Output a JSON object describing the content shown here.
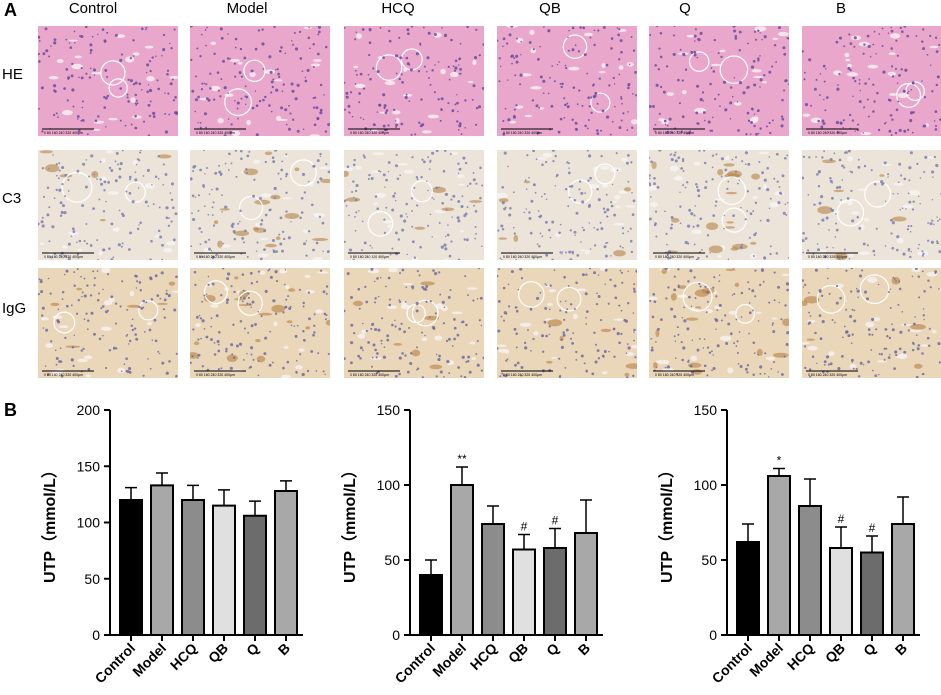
{
  "panel_a_letter": "A",
  "panel_b_letter": "B",
  "columns": [
    "Control",
    "Model",
    "HCQ",
    "QB",
    "Q",
    "B"
  ],
  "rows": [
    {
      "label": "HE",
      "stain": "he"
    },
    {
      "label": "C3",
      "stain": "c3"
    },
    {
      "label": "IgG",
      "stain": "igg"
    }
  ],
  "scalebar_text": "0  80  160  240  320  400μm",
  "colors": {
    "he_bg": "#e9a7cb",
    "he_cell": "#6a4a9e",
    "c3_bg": "#ece4d8",
    "c3_cell": "#7b7fb0",
    "c3_brown": "#b07a3a",
    "igg_bg": "#ead6b8",
    "igg_cell": "#6f6aa0"
  },
  "bar_fills": [
    "#000000",
    "#a8a8a8",
    "#8c8c8c",
    "#e0e0e0",
    "#6c6c6c",
    "#a8a8a8"
  ],
  "chart_data": [
    {
      "type": "bar",
      "categories": [
        "Control",
        "Model",
        "HCQ",
        "QB",
        "Q",
        "B"
      ],
      "values": [
        120,
        133,
        120,
        115,
        106,
        128
      ],
      "errors": [
        11,
        11,
        13,
        14,
        13,
        9
      ],
      "annotations": [
        "",
        "",
        "",
        "",
        "",
        ""
      ],
      "ylabel": "UTP（mmol/L）",
      "ylim": [
        0,
        200
      ],
      "yticks": [
        0,
        50,
        100,
        150,
        200
      ]
    },
    {
      "type": "bar",
      "categories": [
        "Control",
        "Model",
        "HCQ",
        "QB",
        "Q",
        "B"
      ],
      "values": [
        40,
        100,
        74,
        57,
        58,
        68
      ],
      "errors": [
        10,
        12,
        12,
        10,
        13,
        22
      ],
      "annotations": [
        "",
        "**",
        "",
        "#",
        "#",
        ""
      ],
      "ylabel": "UTP（mmol/L）",
      "ylim": [
        0,
        150
      ],
      "yticks": [
        0,
        50,
        100,
        150
      ]
    },
    {
      "type": "bar",
      "categories": [
        "Control",
        "Model",
        "HCQ",
        "QB",
        "Q",
        "B"
      ],
      "values": [
        62,
        106,
        86,
        58,
        55,
        74
      ],
      "errors": [
        12,
        5,
        18,
        14,
        11,
        18
      ],
      "annotations": [
        "",
        "*",
        "",
        "#",
        "#",
        ""
      ],
      "ylabel": "UTP（mmol/L）",
      "ylim": [
        0,
        150
      ],
      "yticks": [
        0,
        50,
        100,
        150
      ]
    }
  ]
}
